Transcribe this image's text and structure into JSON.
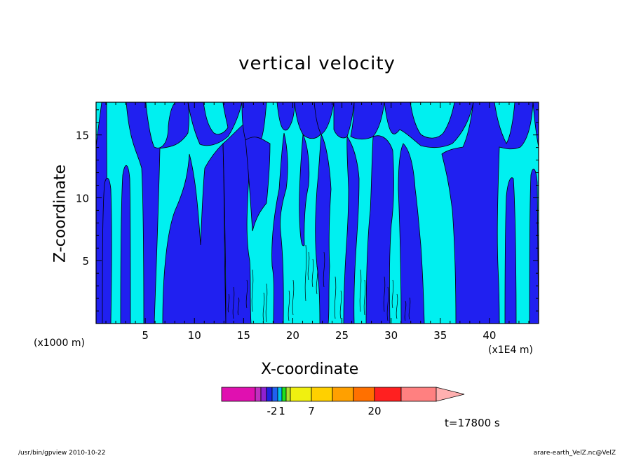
{
  "app": {
    "footer_left": "/usr/bin/gpview   2010-10-22",
    "footer_right": "arare-earth_VelZ.nc@VelZ",
    "time_label": "t=17800 s"
  },
  "chart_data": {
    "type": "heatmap",
    "title": "vertical velocity",
    "xlabel": "X-coordinate",
    "ylabel": "Z-coordinate",
    "x_unit_label": "(x1E4 m)",
    "y_unit_label": "(x1000 m)",
    "xlim": [
      0,
      45
    ],
    "ylim": [
      0,
      17.6
    ],
    "x_ticks": [
      5,
      10,
      15,
      20,
      25,
      30,
      35,
      40
    ],
    "y_ticks": [
      5,
      10,
      15
    ],
    "colors": {
      "background_band": "#00f0f0",
      "contour_band": "#2020f0"
    },
    "colorbar": {
      "colors": [
        "#e010b0",
        "#c030c0",
        "#9020d0",
        "#2020e0",
        "#2060f0",
        "#00c0f0",
        "#20e020",
        "#b0e030",
        "#f0f010",
        "#ffd000",
        "#ffa000",
        "#ff7000",
        "#ff2020",
        "#ff8080",
        "#ffb0b0"
      ],
      "labels": [
        {
          "value": -2,
          "text": "-2"
        },
        {
          "value": 1,
          "text": "1"
        },
        {
          "value": 7,
          "text": "7"
        },
        {
          "value": 20,
          "text": "20"
        }
      ]
    }
  }
}
